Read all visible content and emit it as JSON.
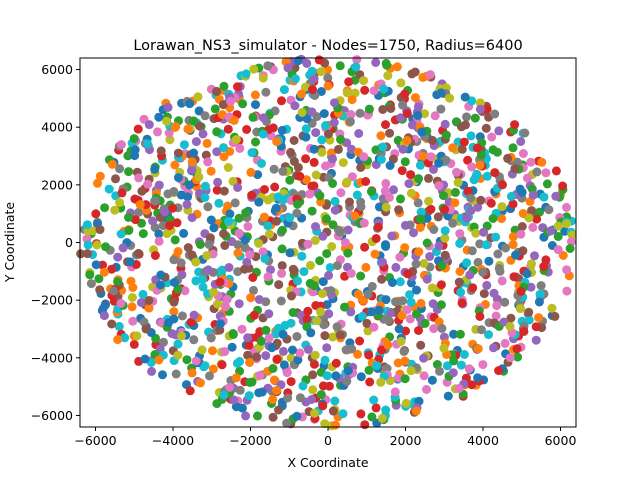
{
  "chart_data": {
    "type": "scatter",
    "title": "Lorawan_NS3_simulator - Nodes=1750, Radius=6400",
    "xlabel": "X Coordinate",
    "ylabel": "Y Coordinate",
    "xlim": [
      -6400,
      6400
    ],
    "ylim": [
      -6400,
      6400
    ],
    "grid": false,
    "legend": "none",
    "n_points": 1750,
    "radius": 6400,
    "xticks": [
      -6000,
      -4000,
      -2000,
      0,
      2000,
      4000,
      6000
    ],
    "xtick_labels": [
      "−6000",
      "−4000",
      "−2000",
      "0",
      "2000",
      "4000",
      "6000"
    ],
    "yticks": [
      -6000,
      -4000,
      -2000,
      0,
      2000,
      4000,
      6000
    ],
    "ytick_labels": [
      "−6000",
      "−4000",
      "−2000",
      "0",
      "2000",
      "4000",
      "6000"
    ],
    "colors": [
      "#1f77b4",
      "#ff7f0e",
      "#2ca02c",
      "#d62728",
      "#9467bd",
      "#8c564b",
      "#e377c2",
      "#7f7f7f",
      "#bcbd22",
      "#17becf"
    ]
  }
}
